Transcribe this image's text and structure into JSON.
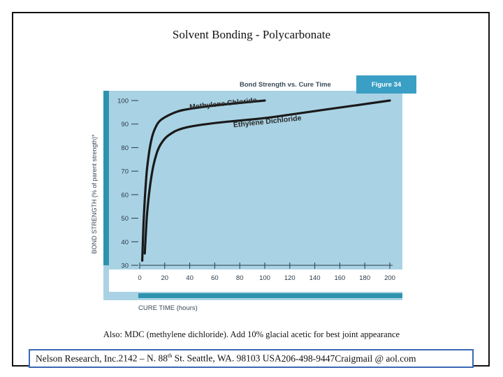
{
  "slide": {
    "title": "Solvent Bonding - Polycarbonate",
    "note": "Also:  MDC (methylene dichloride). Add 10% glacial acetic for best joint appearance",
    "footer": {
      "company": "Nelson Research, Inc.",
      "address_prefix": "2142 – N. 88",
      "address_sup": "th",
      "address_suffix": " St. Seattle, WA. 98103  USA",
      "phone": "206-498-9447",
      "email": "Craigmail @ aol.com"
    }
  },
  "colors": {
    "plot_bg": "#a9d3e4",
    "bar_teal": "#2e93ae",
    "figure_tab": "#3a9fc4",
    "curve": "#1a1a1a",
    "footer_border": "#3a68b5"
  },
  "chart_data": {
    "type": "line",
    "title": "Bond Strength vs. Cure Time",
    "figure_label": "Figure 34",
    "xlabel": "CURE TIME (hours)",
    "ylabel": "BOND STRENGTH (% of parent strength)*",
    "xlim": [
      0,
      200
    ],
    "ylim": [
      30,
      100
    ],
    "xticks": [
      0,
      20,
      40,
      60,
      80,
      100,
      120,
      140,
      160,
      180,
      200
    ],
    "yticks": [
      30,
      40,
      50,
      60,
      70,
      80,
      90,
      100
    ],
    "grid": false,
    "series": [
      {
        "name": "Methylene Chloride",
        "x": [
          2,
          3,
          4,
          5,
          6,
          8,
          10,
          12,
          15,
          20,
          30,
          40,
          60,
          80,
          100
        ],
        "y": [
          32,
          48,
          58,
          66,
          72,
          80,
          85,
          88,
          91,
          93,
          95.5,
          96.5,
          98,
          99,
          100
        ]
      },
      {
        "name": "Ethylene Dichloride",
        "x": [
          4,
          5,
          6,
          8,
          10,
          12,
          15,
          20,
          25,
          30,
          40,
          60,
          80,
          100,
          120,
          140,
          160,
          180,
          200
        ],
        "y": [
          35,
          45,
          53,
          63,
          70,
          75,
          80,
          84,
          86,
          87.5,
          89,
          90.5,
          91.5,
          92.5,
          94,
          95.5,
          97,
          98.5,
          100
        ]
      }
    ]
  }
}
